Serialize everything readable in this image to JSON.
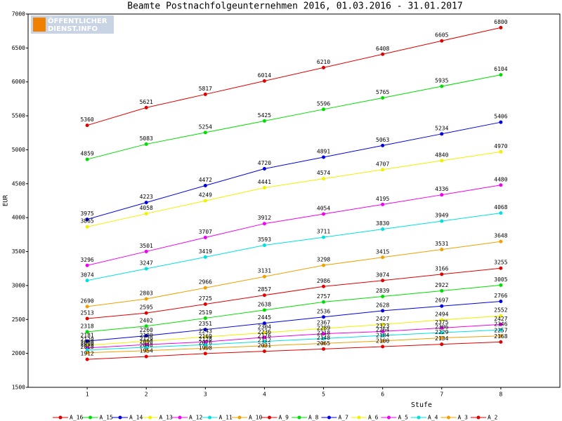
{
  "chart_data": {
    "type": "line",
    "title": "Beamte Postnachfolgeunternehmen 2016, 01.03.2016 - 31.01.2017",
    "logo": [
      "ÖFFENTLICHER",
      "DIENST.INFO"
    ],
    "x_label": "Stufe",
    "y_label": "EUR",
    "x": [
      1,
      2,
      3,
      4,
      5,
      6,
      7,
      8
    ],
    "xlim": [
      0,
      9
    ],
    "xticks": [
      1,
      2,
      3,
      4,
      5,
      6,
      7,
      8
    ],
    "ylim": [
      1500,
      7000
    ],
    "yticks": [
      1500,
      2000,
      2500,
      3000,
      3500,
      4000,
      4500,
      5000,
      5500,
      6000,
      6500,
      7000
    ],
    "legend": "bottom",
    "series": [
      {
        "name": "A_16",
        "color": "#e00000",
        "values": [
          5360,
          5621,
          5817,
          6014,
          6210,
          6408,
          6605,
          6800
        ]
      },
      {
        "name": "A_15",
        "color": "#00dd00",
        "values": [
          4859,
          5083,
          5254,
          5425,
          5596,
          5765,
          5935,
          6104
        ]
      },
      {
        "name": "A_14",
        "color": "#0000e0",
        "values": [
          3975,
          4223,
          4472,
          4720,
          4891,
          5063,
          5234,
          5406
        ]
      },
      {
        "name": "A_13",
        "color": "#f0f000",
        "values": [
          3865,
          4058,
          4249,
          4441,
          4574,
          4707,
          4840,
          4970
        ]
      },
      {
        "name": "A_12",
        "color": "#f000f0",
        "values": [
          3296,
          3501,
          3707,
          3912,
          4054,
          4195,
          4336,
          4480
        ]
      },
      {
        "name": "A_11",
        "color": "#00e0e0",
        "values": [
          3074,
          3247,
          3419,
          3593,
          3711,
          3830,
          3949,
          4068
        ]
      },
      {
        "name": "A_10",
        "color": "#f0a000",
        "values": [
          2690,
          2803,
          2966,
          3131,
          3298,
          3415,
          3531,
          3648
        ]
      },
      {
        "name": "A_9",
        "color": "#e00000",
        "values": [
          2513,
          2595,
          2725,
          2857,
          2986,
          3074,
          3166,
          3255
        ]
      },
      {
        "name": "A_8",
        "color": "#00dd00",
        "values": [
          2318,
          2402,
          2519,
          2638,
          2757,
          2839,
          2922,
          3005
        ]
      },
      {
        "name": "A_7",
        "color": "#0000e0",
        "values": [
          2181,
          2260,
          2351,
          2445,
          2536,
          2628,
          2697,
          2766
        ]
      },
      {
        "name": "A_6",
        "color": "#f0f000",
        "values": [
          2120,
          2180,
          2243,
          2304,
          2367,
          2427,
          2494,
          2552
        ]
      },
      {
        "name": "A_5",
        "color": "#f000f0",
        "values": [
          2080,
          2129,
          2169,
          2236,
          2289,
          2323,
          2375,
          2427
        ]
      },
      {
        "name": "A_4",
        "color": "#00e0e0",
        "values": [
          2050,
          2090,
          2128,
          2176,
          2218,
          2264,
          2306,
          2346
        ]
      },
      {
        "name": "A_3",
        "color": "#f0a000",
        "values": [
          2010,
          2040,
          2076,
          2112,
          2148,
          2184,
          2229,
          2257
        ]
      },
      {
        "name": "A_2",
        "color": "#e00000",
        "values": [
          1912,
          1954,
          1998,
          2031,
          2065,
          2100,
          2134,
          2168
        ]
      }
    ]
  }
}
